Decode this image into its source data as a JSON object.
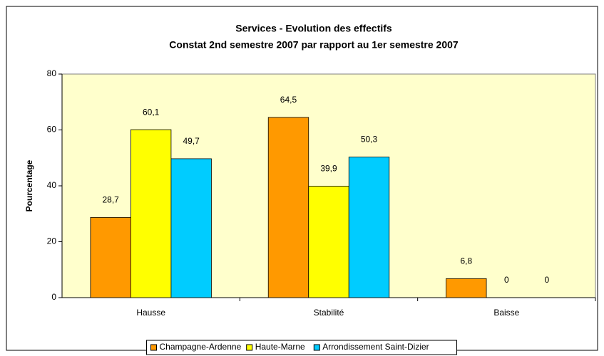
{
  "chart_data": {
    "type": "bar",
    "title": "Services - Evolution des effectifs",
    "subtitle": "Constat 2nd semestre 2007 par rapport au 1er semestre 2007",
    "y_label": "Pourcentage",
    "categories": [
      "Hausse",
      "Stabilité",
      "Baisse"
    ],
    "series": [
      {
        "name": "Champagne-Ardenne",
        "color": "#ff9900",
        "values": [
          28.7,
          64.5,
          6.8
        ],
        "value_labels": [
          "28,7",
          "64,5",
          "6,8"
        ]
      },
      {
        "name": "Haute-Marne",
        "color": "#ffff00",
        "values": [
          60.1,
          39.9,
          0
        ],
        "value_labels": [
          "60,1",
          "39,9",
          "0"
        ]
      },
      {
        "name": "Arrondissement Saint-Dizier",
        "color": "#00ccff",
        "values": [
          49.7,
          50.3,
          0
        ],
        "value_labels": [
          "49,7",
          "50,3",
          "0"
        ]
      }
    ],
    "ylim": [
      0,
      80
    ],
    "yticks": [
      0,
      20,
      40,
      60,
      80
    ],
    "grid": false,
    "legend": "bottom"
  }
}
